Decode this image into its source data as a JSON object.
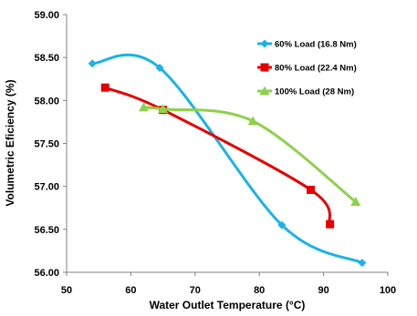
{
  "chart_data": {
    "type": "line",
    "title": "",
    "xlabel": "Water Outlet Temperature (°C)",
    "ylabel": "Volumetric Eficiency (%)",
    "xlim": [
      50,
      100
    ],
    "ylim": [
      56.0,
      59.0
    ],
    "x_ticks": [
      "50",
      "60",
      "70",
      "80",
      "90",
      "100"
    ],
    "y_ticks": [
      "56.00",
      "56.50",
      "57.00",
      "57.50",
      "58.00",
      "58.50",
      "59.00"
    ],
    "x_tick_values": [
      50,
      60,
      70,
      80,
      90,
      100
    ],
    "y_tick_values": [
      56.0,
      56.5,
      57.0,
      57.5,
      58.0,
      58.5,
      59.0
    ],
    "grid": false,
    "smooth": true,
    "legend_position": "top-right",
    "series": [
      {
        "name": "60% Load (16.8 Nm)",
        "color": "#1ab3e6",
        "marker": "diamond",
        "x": [
          54,
          64.5,
          83.5,
          96
        ],
        "y": [
          58.43,
          58.38,
          56.55,
          56.11
        ]
      },
      {
        "name": "80% Load (22.4 Nm)",
        "color": "#e60000",
        "marker": "square",
        "x": [
          56,
          65,
          88,
          91
        ],
        "y": [
          58.15,
          57.89,
          56.96,
          56.56
        ]
      },
      {
        "name": "100% Load (28 Nm)",
        "color": "#8ed14a",
        "marker": "triangle",
        "x": [
          62,
          65,
          79,
          95
        ],
        "y": [
          57.92,
          57.9,
          57.76,
          56.82
        ]
      }
    ]
  }
}
